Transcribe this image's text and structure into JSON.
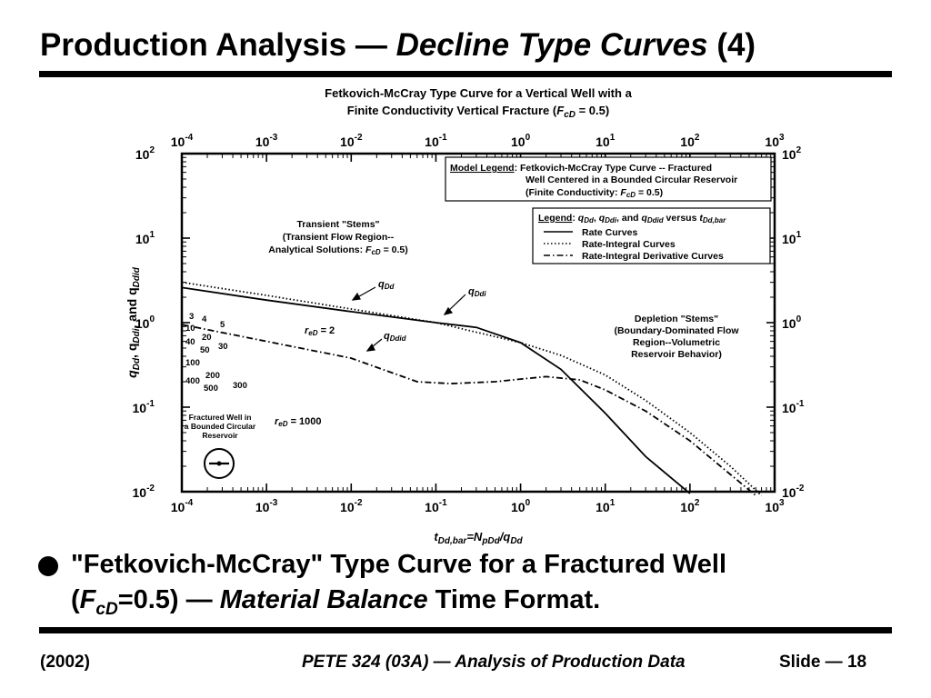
{
  "slide": {
    "title_main": "Production Analysis —",
    "title_italic": "Decline Type Curves",
    "title_suffix": "(4)"
  },
  "bullet": {
    "line1": "\"Fetkovich-McCray\" Type Curve for a Fractured Well",
    "line2_prefix": "(",
    "fcd_main": "F",
    "fcd_sub": "cD",
    "line2_mid": "=0.5) —",
    "line2_italic": "Material Balance",
    "line2_suffix": "Time Format."
  },
  "footer": {
    "left": "(2002)",
    "center": "PETE 324 (03A) — Analysis of Production Data",
    "right": "Slide — 18"
  },
  "chart_data": {
    "type": "line",
    "title": "Fetkovich-McCray Type Curve for a Vertical Well with a Finite Conductivity Vertical Fracture (FcD = 0.5)",
    "title_line1": "Fetkovich-McCray Type Curve for a Vertical Well with a",
    "title_line2_prefix": "Finite Conductivity Vertical Fracture (",
    "title_line2_sym": "F",
    "title_line2_sub": "cD",
    "title_line2_suffix": " = 0.5)",
    "xlabel": "tDd,bar=NpDd/qDd",
    "xlabel_parts": [
      "t",
      "Dd,bar",
      "=N",
      "pDd",
      "/q",
      "Dd"
    ],
    "ylabel": "qDd, qDdi, and qDdid",
    "ylabel_parts": [
      "q",
      "Dd",
      ", q",
      "Ddi",
      ", and q",
      "Ddid"
    ],
    "x_scale": "log",
    "y_scale": "log",
    "xlim": [
      0.0001,
      1000
    ],
    "ylim": [
      0.01,
      100
    ],
    "x_tick_exponents": [
      -4,
      -3,
      -2,
      -1,
      0,
      1,
      2,
      3
    ],
    "y_tick_exponents": [
      -2,
      -1,
      0,
      1,
      2
    ],
    "grid": false,
    "legend_position": "top-right",
    "model_legend": {
      "label": "Model Legend",
      "line1": ": Fetkovich-McCray Type Curve -- Fractured",
      "line2": "Well Centered in a Bounded Circular Reservoir",
      "line3_prefix": "(Finite Conductivity:  ",
      "line3_sym": "F",
      "line3_sub": "cD",
      "line3_suffix": " = 0.5)"
    },
    "legend": {
      "label": "Legend",
      "header_parts": [
        ": ",
        "q",
        "Dd",
        ", ",
        "q",
        "Ddi",
        ", and ",
        "q",
        "Ddid",
        " versus ",
        "t",
        "Dd,bar"
      ],
      "items": [
        {
          "label": "Rate Curves",
          "style": "solid"
        },
        {
          "label": "Rate-Integral Curves",
          "style": "dotted"
        },
        {
          "label": "Rate-Integral Derivative Curves",
          "style": "dash-dot"
        }
      ]
    },
    "annotations": {
      "transient_line1": "Transient \"Stems\"",
      "transient_line2": "(Transient Flow Region--",
      "transient_line3_prefix": "Analytical Solutions: ",
      "transient_line3_sym": "F",
      "transient_line3_sub": "cD",
      "transient_line3_suffix": " = 0.5)",
      "depletion_line1": "Depletion \"Stems\"",
      "depletion_line2": "(Boundary-Dominated Flow",
      "depletion_line3": "Region--Volumetric",
      "depletion_line4": "Reservoir Behavior)",
      "qdd_label": [
        "q",
        "Dd"
      ],
      "qddi_label": [
        "q",
        "Ddi"
      ],
      "qddid_label": [
        "q",
        "Ddid"
      ],
      "red_2": [
        "r",
        "eD",
        " = 2"
      ],
      "red_1000": [
        "r",
        "eD",
        " = 1000"
      ],
      "well_line1": "Fractured Well in",
      "well_line2": "a Bounded Circular",
      "well_line3": "Reservoir",
      "red_values": [
        "3",
        "4",
        "5",
        "10",
        "20",
        "30",
        "40",
        "50",
        "100",
        "200",
        "300",
        "400",
        "500"
      ]
    },
    "series": [
      {
        "name": "Rate Curves",
        "style": "solid",
        "x": [
          0.0001,
          0.001,
          0.01,
          0.1,
          0.3,
          1,
          3,
          10,
          30,
          100
        ],
        "y": [
          2.6,
          1.85,
          1.35,
          1.0,
          0.88,
          0.58,
          0.28,
          0.085,
          0.026,
          0.0095
        ]
      },
      {
        "name": "Rate-Integral Curves",
        "style": "dotted",
        "x": [
          0.0001,
          0.001,
          0.01,
          0.1,
          1,
          3,
          10,
          30,
          100,
          300,
          700
        ],
        "y": [
          3.0,
          2.1,
          1.45,
          1.0,
          0.58,
          0.41,
          0.24,
          0.12,
          0.05,
          0.02,
          0.009
        ]
      },
      {
        "name": "Rate-Integral Derivative Curves",
        "style": "dash-dot",
        "x": [
          0.0001,
          0.001,
          0.01,
          0.06,
          0.15,
          0.5,
          1,
          2,
          5,
          10,
          30,
          100,
          300,
          600
        ],
        "y": [
          0.95,
          0.6,
          0.38,
          0.2,
          0.19,
          0.2,
          0.215,
          0.23,
          0.21,
          0.16,
          0.09,
          0.04,
          0.016,
          0.009
        ]
      }
    ]
  }
}
